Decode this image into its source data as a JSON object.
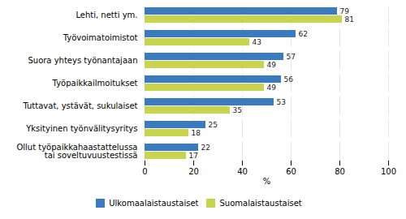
{
  "chart_data": {
    "type": "bar",
    "orientation": "horizontal",
    "categories": [
      "Lehti, netti ym.",
      "Työvoimatoimistot",
      "Suora yhteys työnantajaan",
      "Työpaikkailmoitukset",
      "Tuttavat, ystävät, sukulaiset",
      "Yksityinen työnvälitysyritys",
      "Ollut työpaikkahaasta­ttelussa\ntai soveltuvuustestissä"
    ],
    "series": [
      {
        "name": "Ulkomaalaistaustaiset",
        "color": "#3a7abf",
        "values": [
          79,
          62,
          57,
          56,
          53,
          25,
          22
        ]
      },
      {
        "name": "Suomalaistaustaiset",
        "color": "#c8d44e",
        "values": [
          81,
          43,
          49,
          49,
          35,
          18,
          17
        ]
      }
    ],
    "xlabel": "%",
    "xlim": [
      0,
      100
    ],
    "xticks": [
      0,
      20,
      40,
      60,
      80,
      100
    ],
    "grid": true,
    "data_labels": true,
    "legend": "bottom"
  }
}
